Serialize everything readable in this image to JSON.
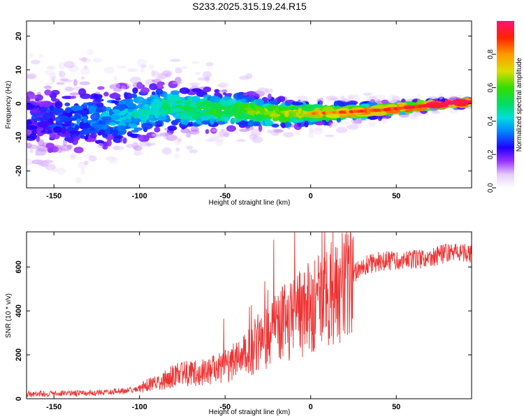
{
  "title": "S233.2025.315.19.24.R15",
  "chart_data": [
    {
      "type": "heatmap",
      "name": "spectrogram",
      "xlabel": "Height of straight line (km)",
      "ylabel": "Frequency (Hz)",
      "xlim": [
        -166,
        94
      ],
      "ylim": [
        -25,
        24.5
      ],
      "xticks": [
        -150,
        -100,
        -50,
        0,
        50
      ],
      "yticks": [
        -20,
        -10,
        0,
        10,
        20
      ],
      "ridge": {
        "description": "dominant frequency track",
        "x": [
          -166,
          -110,
          -85,
          -60,
          -40,
          -20,
          0,
          20,
          40,
          60,
          80,
          94
        ],
        "y": [
          -5,
          -4,
          -1,
          -2,
          -2,
          -3,
          -3,
          -2.5,
          -2,
          -1,
          0,
          0.5
        ]
      },
      "colorbar": {
        "label": "Normalized spectral amplitude",
        "range": [
          0,
          1
        ],
        "ticks": [
          0.0,
          0.2,
          0.4,
          0.6,
          0.8
        ]
      }
    },
    {
      "type": "line",
      "name": "snr",
      "xlabel": "Height of straight line (km)",
      "ylabel": "SNR (10 * v/v)",
      "xlim": [
        -166,
        94
      ],
      "ylim": [
        0,
        760
      ],
      "xticks": [
        -150,
        -100,
        -50,
        0,
        50
      ],
      "yticks": [
        0,
        200,
        400,
        600
      ],
      "color": "#ee3333",
      "envelope": {
        "x": [
          -166,
          -150,
          -120,
          -100,
          -90,
          -80,
          -70,
          -60,
          -50,
          -40,
          -30,
          -20,
          -15,
          -10,
          -5,
          0,
          10,
          20,
          25,
          30,
          40,
          50,
          60,
          70,
          80,
          94
        ],
        "y": [
          20,
          22,
          25,
          45,
          70,
          100,
          110,
          120,
          140,
          180,
          230,
          300,
          330,
          350,
          370,
          400,
          430,
          500,
          560,
          600,
          620,
          625,
          630,
          640,
          660,
          660
        ]
      }
    }
  ]
}
